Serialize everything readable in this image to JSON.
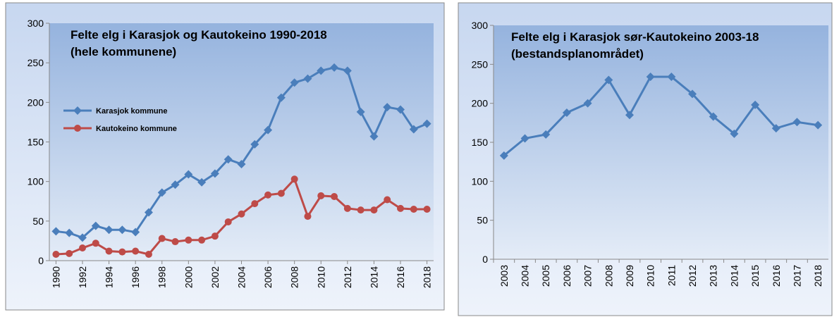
{
  "chart_data": [
    {
      "type": "line",
      "title": "Felte elg i Karasjok og Kautokeino 1990-2018",
      "subtitle": "(hele kommunene)",
      "x": [
        1990,
        1991,
        1992,
        1993,
        1994,
        1995,
        1996,
        1997,
        1998,
        1999,
        2000,
        2001,
        2002,
        2003,
        2004,
        2005,
        2006,
        2007,
        2008,
        2009,
        2010,
        2011,
        2012,
        2013,
        2014,
        2015,
        2016,
        2017,
        2018
      ],
      "series": [
        {
          "name": "Karasjok kommune",
          "color": "#4a7ebb",
          "marker": "diamond",
          "values": [
            37,
            35,
            29,
            44,
            39,
            39,
            36,
            61,
            86,
            96,
            109,
            99,
            110,
            128,
            122,
            147,
            165,
            206,
            225,
            230,
            240,
            244,
            240,
            188,
            157,
            194,
            191,
            166,
            173
          ]
        },
        {
          "name": "Kautokeino kommune",
          "color": "#be4b48",
          "marker": "circle",
          "values": [
            8,
            9,
            16,
            22,
            12,
            11,
            12,
            8,
            28,
            24,
            26,
            26,
            31,
            49,
            59,
            72,
            83,
            85,
            103,
            56,
            82,
            81,
            66,
            64,
            64,
            77,
            66,
            65,
            65
          ]
        }
      ],
      "xlim": [
        1989.5,
        2018.5
      ],
      "xticks": [
        1990,
        1992,
        1994,
        1996,
        1998,
        2000,
        2002,
        2004,
        2006,
        2008,
        2010,
        2012,
        2014,
        2016,
        2018
      ],
      "ylim": [
        0,
        300
      ],
      "yticks": [
        0,
        50,
        100,
        150,
        200,
        250,
        300
      ],
      "legend": "left",
      "grid": false
    },
    {
      "type": "line",
      "title": "Felte elg i Karasjok sør-Kautokeino 2003-18",
      "subtitle": "(bestandsplanområdet)",
      "categories": [
        "2003",
        "2004",
        "2005",
        "2006",
        "2007",
        "2008",
        "2009",
        "2010",
        "2011",
        "2012",
        "2013",
        "2014",
        "2015",
        "2016",
        "2017",
        "2018"
      ],
      "values": [
        133,
        155,
        160,
        188,
        200,
        230,
        185,
        234,
        234,
        212,
        183,
        161,
        198,
        168,
        176,
        172
      ],
      "color": "#4a7ebb",
      "marker": "diamond",
      "ylim": [
        0,
        300
      ],
      "yticks": [
        0,
        50,
        100,
        150,
        200,
        250,
        300
      ],
      "grid": false
    }
  ]
}
